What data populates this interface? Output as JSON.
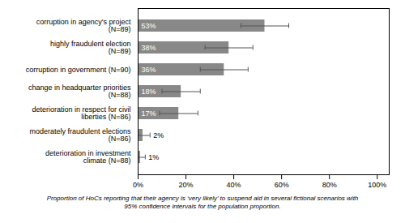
{
  "chart_data": {
    "type": "bar",
    "orientation": "horizontal",
    "categories": [
      "corruption in agency's project\n(N=89)",
      "highly fraudulent election\n(N=89)",
      "corruption in government (N=90)",
      "change in headquarter priorities\n(N=88)",
      "deterioration in respect for civil\nliberties (N=86)",
      "moderately fraudulent elections\n(N=86)",
      "deterioration in investment\nclimate (N=88)"
    ],
    "values": [
      53,
      38,
      36,
      18,
      17,
      2,
      1
    ],
    "value_labels": [
      "53%",
      "38%",
      "36%",
      "18%",
      "17%",
      "2%",
      "1%"
    ],
    "data_labels": true,
    "color": "#888888",
    "error_bars": {
      "plus": [
        10,
        10,
        10,
        8,
        8,
        3,
        2
      ],
      "minus": [
        10,
        10,
        10,
        8,
        8,
        2,
        1
      ],
      "color": "#555555"
    },
    "xlim": [
      0,
      105
    ],
    "xticks": [
      {
        "value": 0,
        "label": "0%"
      },
      {
        "value": 20,
        "label": "20%"
      },
      {
        "value": 40,
        "label": "40%"
      },
      {
        "value": 60,
        "label": "60%"
      },
      {
        "value": 80,
        "label": "80%"
      },
      {
        "value": 100,
        "label": "100%"
      }
    ],
    "grid": false,
    "caption": "Proportion of HoCs reporting that their agency is ‘very likely’ to suspend aid in several fictional scenarios with\n95% confidence intervals for the population proportion."
  }
}
